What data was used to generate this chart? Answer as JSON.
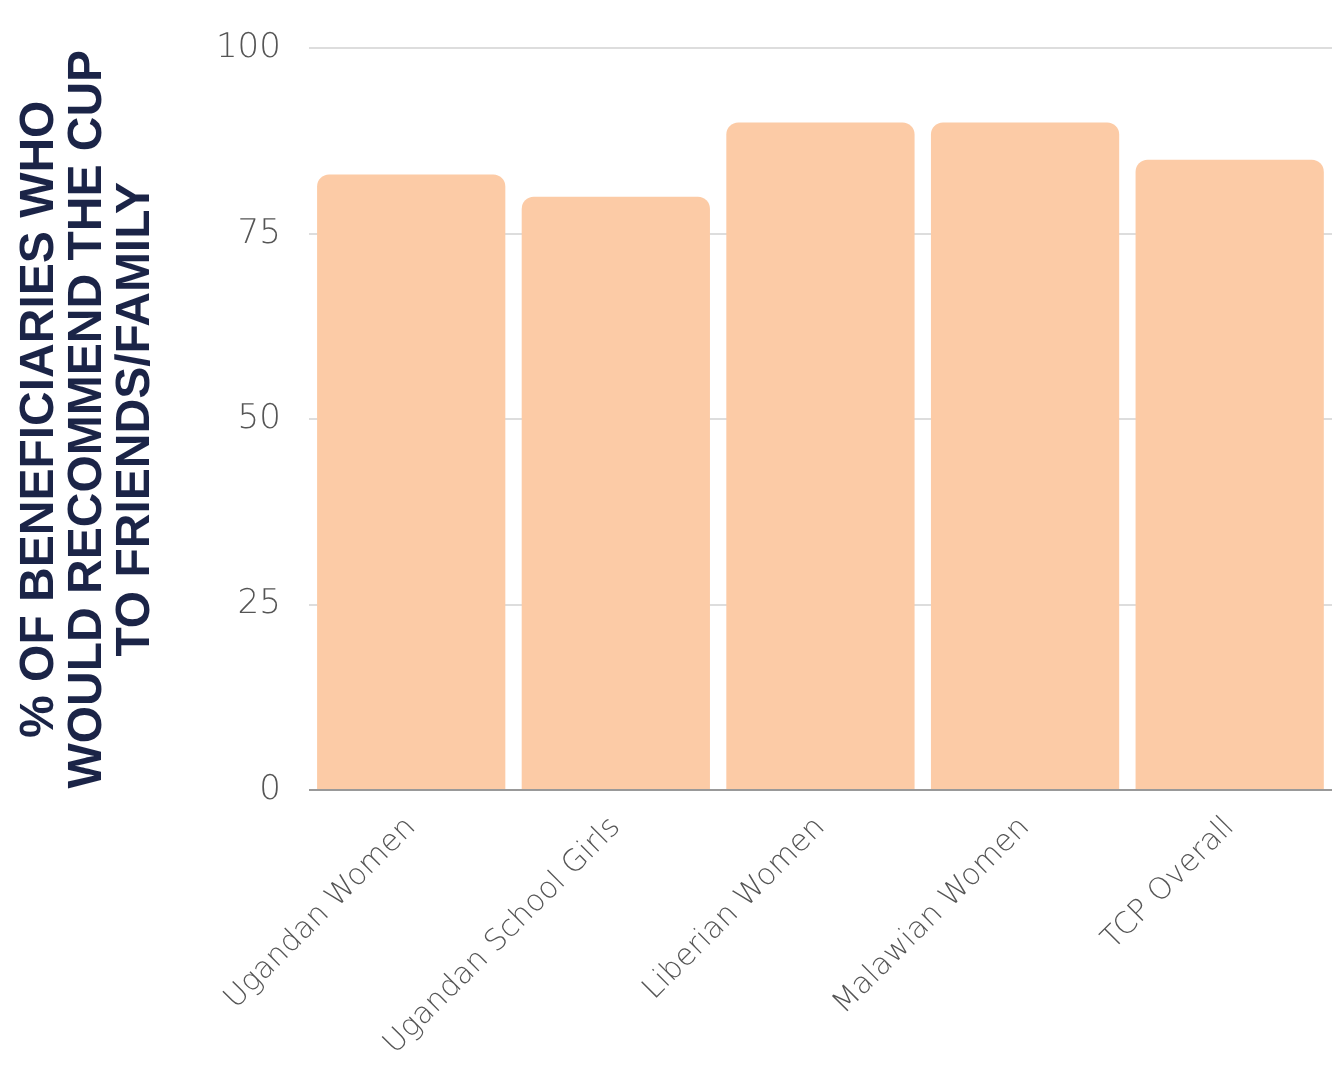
{
  "chart_data": {
    "type": "bar",
    "ylabel": "% OF BENEFICIARIES WHO WOULD RECOMMEND THE CUP TO FRIENDS/FAMILY",
    "categories": [
      "Ugandan Women",
      "Ugandan School Girls",
      "Liberian Women",
      "Malawian Women",
      "TCP Overall"
    ],
    "values": [
      83,
      80,
      90,
      90,
      85
    ],
    "color": "#fccba6",
    "ylim": [
      0,
      100
    ],
    "yticks": [
      0,
      25,
      50,
      75,
      100
    ],
    "grid": "y"
  }
}
